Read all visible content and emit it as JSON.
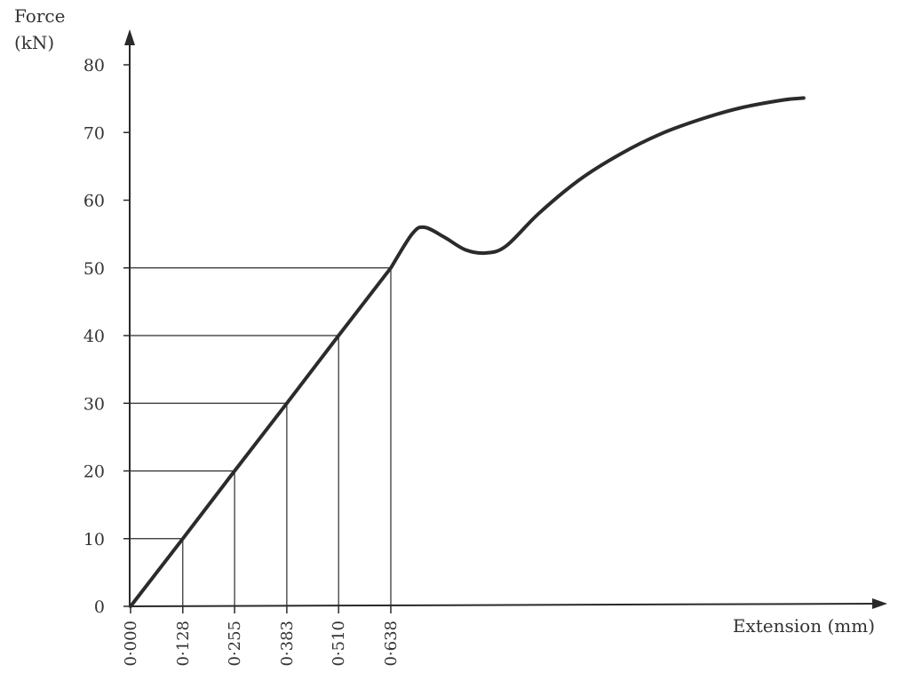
{
  "chart_data": {
    "type": "line",
    "title": "",
    "ylabel_line1": "Force",
    "ylabel_line2": "(kN)",
    "xlabel": "Extension (mm)",
    "ylim": [
      0,
      80
    ],
    "y_ticks": [
      0,
      10,
      20,
      30,
      40,
      50,
      60,
      70,
      80
    ],
    "y_tick_labels": [
      "0",
      "10",
      "20",
      "30",
      "40",
      "50",
      "60",
      "70",
      "80"
    ],
    "x_ticks": [
      0,
      0.128,
      0.255,
      0.383,
      0.51,
      0.638
    ],
    "x_tick_labels": [
      "0·000",
      "0·128",
      "0·255",
      "0·383",
      "0·510",
      "0·638"
    ],
    "guide_lines": [
      {
        "x": 0.128,
        "y": 10
      },
      {
        "x": 0.255,
        "y": 20
      },
      {
        "x": 0.383,
        "y": 30
      },
      {
        "x": 0.51,
        "y": 40
      },
      {
        "x": 0.638,
        "y": 50
      }
    ],
    "grid": false,
    "series": [
      {
        "values": [
          {
            "x": 0,
            "y": 0
          },
          {
            "x": 0.128,
            "y": 10
          },
          {
            "x": 0.255,
            "y": 20
          },
          {
            "x": 0.383,
            "y": 30
          },
          {
            "x": 0.51,
            "y": 40
          },
          {
            "x": 0.638,
            "y": 50
          },
          {
            "x": 0.69,
            "y": 55
          },
          {
            "x": 0.72,
            "y": 56
          },
          {
            "x": 0.77,
            "y": 54.5
          },
          {
            "x": 0.82,
            "y": 52.7
          },
          {
            "x": 0.87,
            "y": 52.2
          },
          {
            "x": 0.92,
            "y": 53.2
          },
          {
            "x": 1.0,
            "y": 58
          },
          {
            "x": 1.1,
            "y": 63
          },
          {
            "x": 1.2,
            "y": 66.8
          },
          {
            "x": 1.3,
            "y": 69.8
          },
          {
            "x": 1.4,
            "y": 72
          },
          {
            "x": 1.5,
            "y": 73.7
          },
          {
            "x": 1.6,
            "y": 74.8
          },
          {
            "x": 1.65,
            "y": 75.1
          }
        ]
      }
    ]
  }
}
